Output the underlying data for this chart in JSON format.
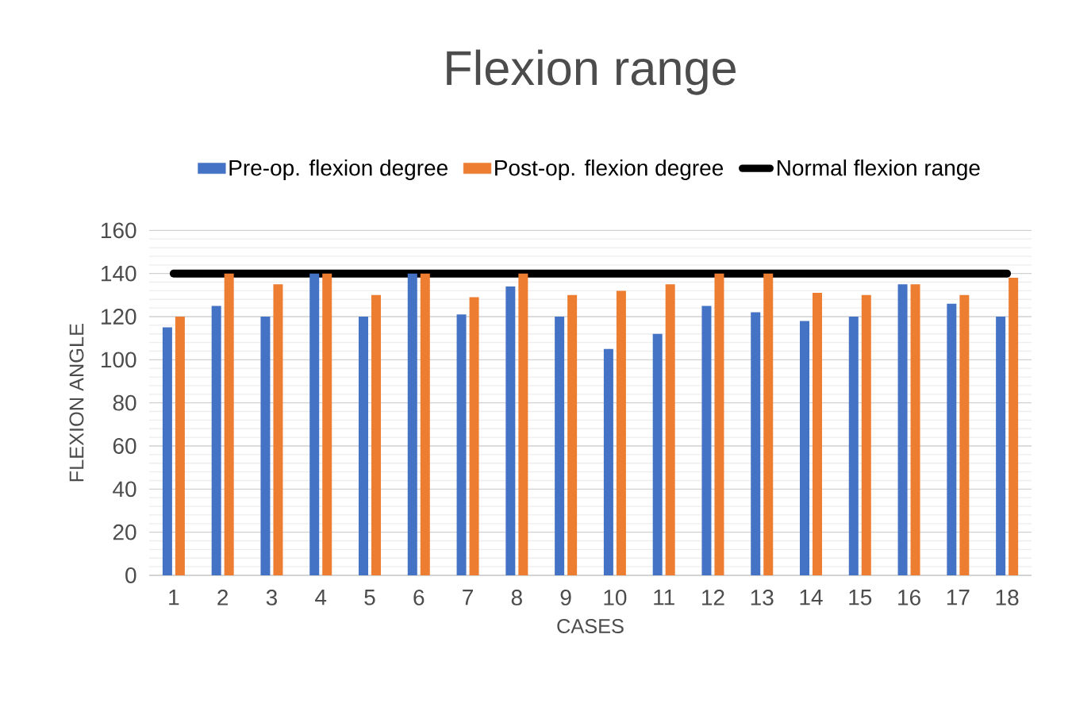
{
  "chart_data": {
    "type": "bar",
    "title": "Flexion range",
    "xlabel": "CASES",
    "ylabel": "FLEXION ANGLE",
    "categories": [
      "1",
      "2",
      "3",
      "4",
      "5",
      "6",
      "7",
      "8",
      "9",
      "10",
      "11",
      "12",
      "13",
      "14",
      "15",
      "16",
      "17",
      "18"
    ],
    "series": [
      {
        "name": "Pre-op. flexion degree",
        "color": "#4472c4",
        "values": [
          115,
          125,
          120,
          140,
          120,
          140,
          121,
          134,
          120,
          105,
          112,
          125,
          122,
          118,
          120,
          135,
          126,
          120
        ]
      },
      {
        "name": "Post-op. flexion degree",
        "color": "#ed7d31",
        "values": [
          120,
          140,
          135,
          140,
          130,
          140,
          129,
          140,
          130,
          132,
          135,
          140,
          140,
          131,
          130,
          135,
          130,
          138
        ]
      },
      {
        "name": "Normal flexion range",
        "type": "line",
        "color": "#000000",
        "values": [
          140,
          140,
          140,
          140,
          140,
          140,
          140,
          140,
          140,
          140,
          140,
          140,
          140,
          140,
          140,
          140,
          140,
          140
        ]
      }
    ],
    "ylim": [
      0,
      160
    ],
    "yticks": [
      0,
      20,
      40,
      60,
      80,
      100,
      120,
      140,
      160
    ],
    "grid": "y",
    "legend": "top"
  }
}
